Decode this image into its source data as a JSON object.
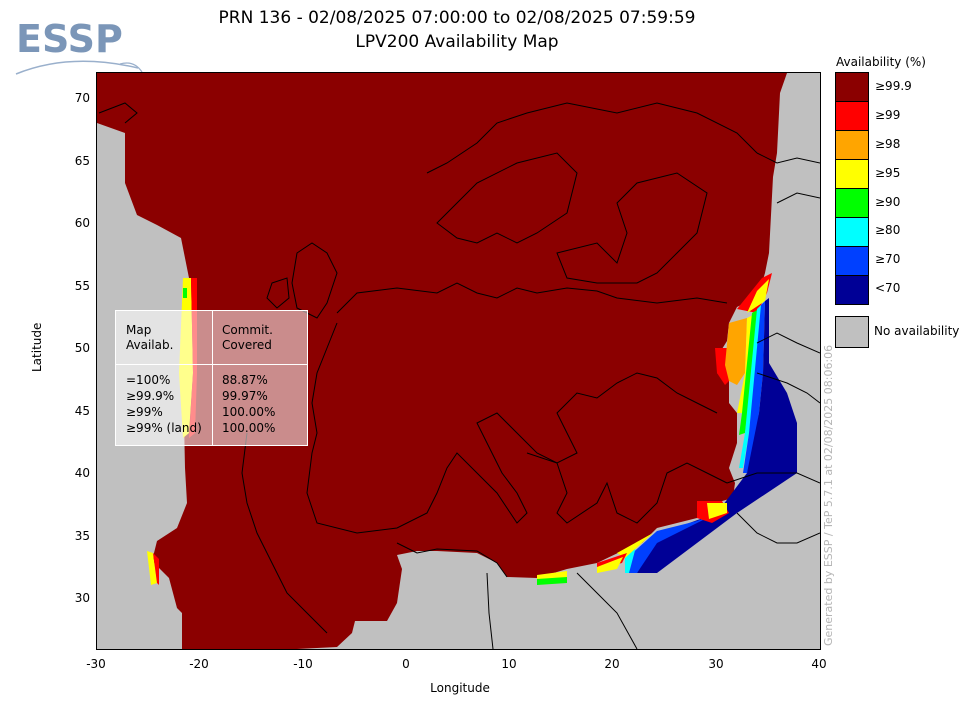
{
  "title": {
    "line1": "PRN 136 - 02/08/2025 07:00:00 to 02/08/2025 07:59:59",
    "line2": "LPV200 Availability Map"
  },
  "logo": {
    "text": "ESSP"
  },
  "axes": {
    "xlabel": "Longitude",
    "ylabel": "Latitude",
    "xticks": [
      "-30",
      "-20",
      "-10",
      "0",
      "10",
      "20",
      "30",
      "40"
    ],
    "yticks": [
      "70",
      "65",
      "60",
      "55",
      "50",
      "45",
      "40",
      "35",
      "30"
    ],
    "xlim": [
      -30,
      40
    ],
    "ylim": [
      26,
      72
    ]
  },
  "legend": {
    "title": "Availability (%)",
    "items": [
      {
        "label": "≥99.9",
        "color": "#8b0000"
      },
      {
        "label": "≥99",
        "color": "#ff0000"
      },
      {
        "label": "≥98",
        "color": "#ffa500"
      },
      {
        "label": "≥95",
        "color": "#ffff00"
      },
      {
        "label": "≥90",
        "color": "#00ff00"
      },
      {
        "label": "≥80",
        "color": "#00ffff"
      },
      {
        "label": "≥70",
        "color": "#0040ff"
      },
      {
        "label": "<70",
        "color": "#000096"
      }
    ],
    "no_availability": {
      "label": "No availability",
      "color": "#c0c0c0"
    }
  },
  "stats": {
    "col1_header": [
      "Map",
      "Availab."
    ],
    "col2_header": [
      "Commit.",
      "Covered"
    ],
    "rows": [
      {
        "level": "=100%",
        "covered": "88.87%"
      },
      {
        "level": "≥99.9%",
        "covered": "99.97%"
      },
      {
        "level": "≥99%",
        "covered": "100.00%"
      },
      {
        "level": "≥99% (land)",
        "covered": "100.00%"
      }
    ]
  },
  "watermark": "Generated by ESSP / TeP 5.7.1 at 02/08/2025 08:06:06"
}
